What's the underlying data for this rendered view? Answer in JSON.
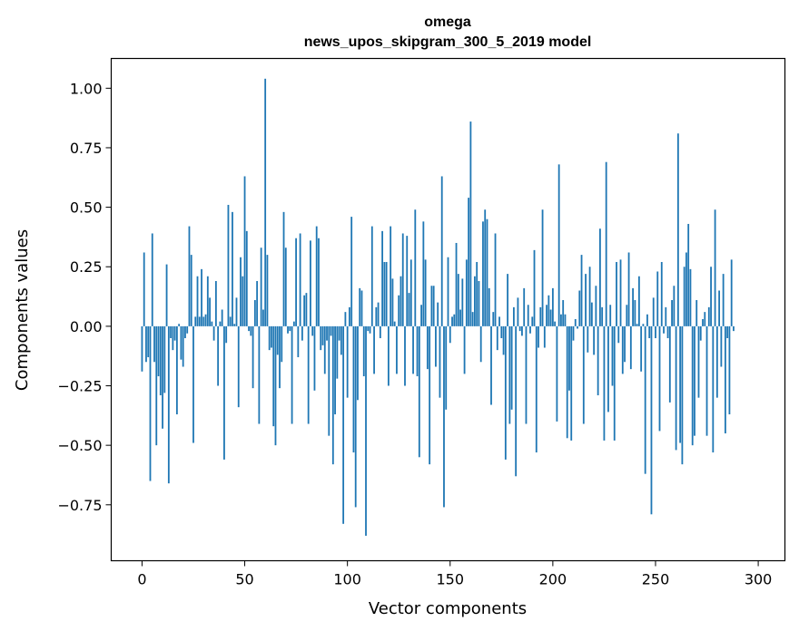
{
  "chart_data": {
    "type": "bar",
    "title_line1": "omega",
    "title_line2": "news_upos_skipgram_300_5_2019 model",
    "xlabel": "Vector components",
    "ylabel": "Components values",
    "xlim": [
      -15,
      313
    ],
    "ylim": [
      -0.985,
      1.125
    ],
    "xticks": [
      0,
      50,
      100,
      150,
      200,
      250,
      300
    ],
    "xtick_labels": [
      "0",
      "50",
      "100",
      "150",
      "200",
      "250",
      "300"
    ],
    "yticks": [
      -0.75,
      -0.5,
      -0.25,
      0.0,
      0.25,
      0.5,
      0.75,
      1.0
    ],
    "ytick_labels": [
      "−0.75",
      "−0.50",
      "−0.25",
      "0.00",
      "0.25",
      "0.50",
      "0.75",
      "1.00"
    ],
    "bar_color": "#1f77b4",
    "grid": false,
    "values": [
      -0.19,
      0.31,
      -0.15,
      -0.13,
      -0.65,
      0.39,
      -0.15,
      -0.5,
      -0.21,
      -0.29,
      -0.43,
      -0.28,
      0.26,
      -0.66,
      -0.05,
      -0.1,
      -0.06,
      -0.37,
      0.01,
      -0.14,
      -0.17,
      -0.05,
      -0.03,
      0.42,
      0.3,
      -0.49,
      0.04,
      0.21,
      0.04,
      0.24,
      0.04,
      0.05,
      0.21,
      0.12,
      0.02,
      -0.06,
      0.19,
      -0.25,
      0.02,
      0.07,
      -0.56,
      -0.07,
      0.51,
      0.04,
      0.48,
      0.01,
      0.12,
      -0.34,
      0.29,
      0.21,
      0.63,
      0.4,
      -0.02,
      -0.04,
      -0.26,
      0.11,
      0.19,
      -0.41,
      0.33,
      0.07,
      1.04,
      0.3,
      -0.1,
      -0.09,
      -0.42,
      -0.5,
      -0.12,
      -0.26,
      -0.15,
      0.48,
      0.33,
      -0.03,
      -0.02,
      -0.41,
      0.02,
      0.37,
      -0.13,
      0.39,
      -0.06,
      0.13,
      0.14,
      -0.41,
      0.36,
      -0.04,
      -0.27,
      0.42,
      0.37,
      -0.1,
      -0.08,
      -0.2,
      -0.06,
      -0.46,
      -0.04,
      -0.58,
      -0.37,
      -0.22,
      -0.06,
      -0.12,
      -0.83,
      0.06,
      -0.3,
      0.08,
      0.46,
      -0.53,
      -0.76,
      -0.31,
      0.16,
      0.15,
      -0.21,
      -0.88,
      -0.02,
      -0.03,
      0.42,
      -0.2,
      0.08,
      0.1,
      -0.05,
      0.4,
      0.27,
      0.27,
      -0.25,
      0.42,
      0.2,
      0.02,
      -0.2,
      0.13,
      0.21,
      0.39,
      -0.25,
      0.38,
      0.14,
      0.28,
      -0.2,
      0.49,
      -0.21,
      -0.55,
      0.09,
      0.44,
      0.28,
      -0.18,
      -0.58,
      0.17,
      0.17,
      -0.17,
      0.1,
      -0.3,
      0.63,
      -0.76,
      -0.35,
      0.29,
      -0.07,
      0.04,
      0.05,
      0.35,
      0.22,
      0.07,
      0.2,
      -0.2,
      0.28,
      0.54,
      0.86,
      0.06,
      0.21,
      0.27,
      0.19,
      -0.15,
      0.44,
      0.49,
      0.45,
      0.16,
      -0.33,
      0.06,
      0.39,
      -0.1,
      0.04,
      -0.05,
      -0.12,
      -0.56,
      0.22,
      -0.41,
      -0.35,
      0.08,
      -0.63,
      0.12,
      -0.02,
      -0.04,
      0.16,
      -0.41,
      0.09,
      -0.03,
      0.04,
      0.32,
      -0.53,
      -0.09,
      0.08,
      0.49,
      -0.09,
      0.09,
      0.13,
      0.07,
      0.16,
      0.02,
      -0.4,
      0.68,
      0.05,
      0.11,
      0.05,
      -0.47,
      -0.27,
      -0.48,
      -0.06,
      0.03,
      -0.01,
      0.15,
      0.3,
      -0.41,
      0.22,
      -0.11,
      0.25,
      0.1,
      -0.12,
      0.17,
      -0.29,
      0.41,
      0.08,
      -0.48,
      0.69,
      -0.36,
      0.09,
      -0.25,
      -0.48,
      0.27,
      -0.07,
      0.28,
      -0.2,
      -0.15,
      0.09,
      0.31,
      -0.18,
      0.16,
      0.11,
      0.01,
      0.21,
      -0.19,
      0.01,
      -0.62,
      0.05,
      -0.05,
      -0.79,
      0.12,
      -0.05,
      0.23,
      -0.44,
      0.27,
      -0.03,
      0.08,
      -0.05,
      -0.32,
      0.11,
      0.17,
      -0.52,
      0.81,
      -0.49,
      -0.58,
      0.25,
      0.31,
      0.43,
      0.24,
      -0.5,
      -0.46,
      0.11,
      -0.3,
      -0.06,
      0.03,
      0.06,
      -0.46,
      0.08,
      0.25,
      -0.53,
      0.49,
      -0.3,
      0.15,
      -0.17,
      0.22,
      -0.45,
      -0.05,
      -0.37,
      0.28,
      -0.02
    ]
  }
}
